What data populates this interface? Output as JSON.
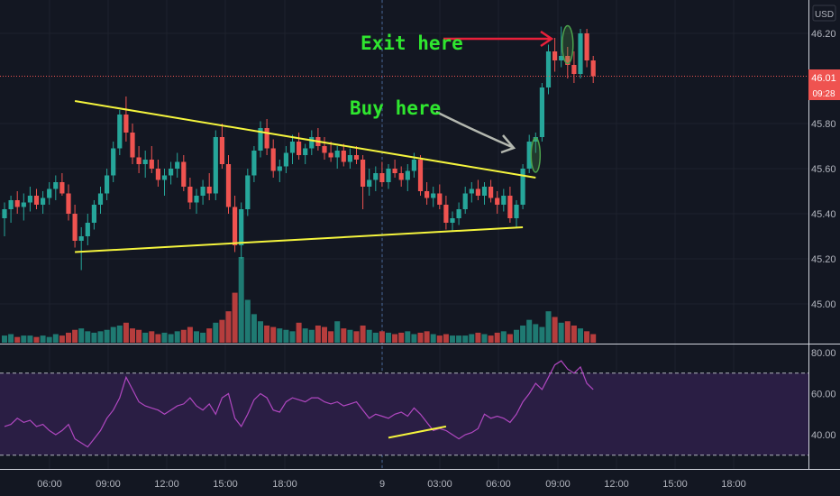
{
  "currency_label": "USD",
  "price_badge": {
    "price": "46.01",
    "countdown": "09:28"
  },
  "colors": {
    "up": "#26a69a",
    "down": "#ef5350",
    "up_vol": "#1f7a72",
    "down_vol": "#b63d3d",
    "trend": "#f5f53d",
    "annotation": "#2fe62f",
    "arrow_red": "#e8203a",
    "arrow_gray": "#b4b8b0",
    "rsi_line": "#b047c0",
    "rsi_band": "#2a1e44",
    "price_line": "#ef5350",
    "badge_bg": "#ef5350"
  },
  "annotations": [
    {
      "text": "Exit here",
      "arrow_color": "#e8203a"
    },
    {
      "text": "Buy here",
      "arrow_color": "#b4b8b0"
    }
  ],
  "chart_data": [
    {
      "type": "candlestick",
      "x_tick_labels": [
        "06:00",
        "09:00",
        "12:00",
        "15:00",
        "18:00",
        "9",
        "03:00",
        "06:00",
        "09:00",
        "12:00",
        "15:00",
        "18:00"
      ],
      "y_tick_labels": [
        "46.20",
        "45.80",
        "45.60",
        "45.40",
        "45.20",
        "45.00"
      ],
      "ylim": [
        44.91,
        46.33
      ],
      "last_price": 46.01,
      "trendlines": [
        {
          "name": "upper-trendline",
          "points": [
            [
              11,
              45.9
            ],
            [
              83,
              45.56
            ]
          ]
        },
        {
          "name": "lower-trendline",
          "points": [
            [
              11,
              45.23
            ],
            [
              81,
              45.34
            ]
          ]
        }
      ],
      "candles": [
        [
          45.38,
          45.45,
          45.3,
          45.42
        ],
        [
          45.42,
          45.48,
          45.36,
          45.46
        ],
        [
          45.46,
          45.5,
          45.4,
          45.43
        ],
        [
          45.43,
          45.49,
          45.37,
          45.45
        ],
        [
          45.45,
          45.52,
          45.41,
          45.48
        ],
        [
          45.48,
          45.51,
          45.42,
          45.44
        ],
        [
          45.44,
          45.5,
          45.4,
          45.47
        ],
        [
          45.47,
          45.54,
          45.44,
          45.51
        ],
        [
          45.51,
          45.57,
          45.46,
          45.54
        ],
        [
          45.54,
          45.58,
          45.48,
          45.49
        ],
        [
          45.49,
          45.53,
          45.37,
          45.4
        ],
        [
          45.4,
          45.44,
          45.25,
          45.28
        ],
        [
          45.28,
          45.34,
          45.15,
          45.3
        ],
        [
          45.3,
          45.4,
          45.26,
          45.36
        ],
        [
          45.36,
          45.46,
          45.33,
          45.44
        ],
        [
          45.44,
          45.52,
          45.4,
          45.49
        ],
        [
          45.49,
          45.6,
          45.46,
          45.57
        ],
        [
          45.57,
          45.72,
          45.54,
          45.69
        ],
        [
          45.69,
          45.86,
          45.66,
          45.84
        ],
        [
          45.84,
          45.92,
          45.72,
          45.76
        ],
        [
          45.76,
          45.8,
          45.62,
          45.65
        ],
        [
          45.65,
          45.7,
          45.58,
          45.62
        ],
        [
          45.62,
          45.68,
          45.56,
          45.64
        ],
        [
          45.64,
          45.7,
          45.58,
          45.6
        ],
        [
          45.6,
          45.64,
          45.52,
          45.55
        ],
        [
          45.55,
          45.6,
          45.48,
          45.57
        ],
        [
          45.57,
          45.63,
          45.53,
          45.6
        ],
        [
          45.6,
          45.67,
          45.56,
          45.63
        ],
        [
          45.63,
          45.66,
          45.5,
          45.52
        ],
        [
          45.52,
          45.56,
          45.42,
          45.45
        ],
        [
          45.45,
          45.51,
          45.4,
          45.48
        ],
        [
          45.48,
          45.55,
          45.44,
          45.52
        ],
        [
          45.52,
          45.58,
          45.46,
          45.49
        ],
        [
          45.49,
          45.77,
          45.46,
          45.74
        ],
        [
          45.74,
          45.8,
          45.6,
          45.62
        ],
        [
          45.62,
          45.66,
          45.4,
          45.43
        ],
        [
          45.43,
          45.48,
          45.23,
          45.26
        ],
        [
          45.26,
          45.45,
          45.2,
          45.42
        ],
        [
          45.42,
          45.6,
          45.39,
          45.57
        ],
        [
          45.57,
          45.7,
          45.54,
          45.68
        ],
        [
          45.68,
          45.81,
          45.65,
          45.78
        ],
        [
          45.78,
          45.82,
          45.66,
          45.69
        ],
        [
          45.69,
          45.73,
          45.56,
          45.59
        ],
        [
          45.59,
          45.64,
          45.54,
          45.61
        ],
        [
          45.61,
          45.7,
          45.58,
          45.67
        ],
        [
          45.67,
          45.75,
          45.62,
          45.72
        ],
        [
          45.72,
          45.76,
          45.64,
          45.66
        ],
        [
          45.66,
          45.71,
          45.62,
          45.69
        ],
        [
          45.69,
          45.77,
          45.66,
          45.74
        ],
        [
          45.74,
          45.78,
          45.68,
          45.7
        ],
        [
          45.7,
          45.74,
          45.64,
          45.67
        ],
        [
          45.67,
          45.72,
          45.63,
          45.65
        ],
        [
          45.65,
          45.7,
          45.6,
          45.68
        ],
        [
          45.68,
          45.71,
          45.61,
          45.63
        ],
        [
          45.63,
          45.69,
          45.6,
          45.66
        ],
        [
          45.66,
          45.7,
          45.62,
          45.64
        ],
        [
          45.64,
          45.66,
          45.42,
          45.52
        ],
        [
          45.52,
          45.6,
          45.48,
          45.55
        ],
        [
          45.55,
          45.61,
          45.5,
          45.58
        ],
        [
          45.58,
          45.63,
          45.52,
          45.54
        ],
        [
          45.54,
          45.62,
          45.51,
          45.6
        ],
        [
          45.6,
          45.64,
          45.56,
          45.58
        ],
        [
          45.58,
          45.61,
          45.52,
          45.55
        ],
        [
          45.55,
          45.62,
          45.5,
          45.59
        ],
        [
          45.59,
          45.67,
          45.56,
          45.64
        ],
        [
          45.64,
          45.66,
          45.48,
          45.5
        ],
        [
          45.5,
          45.54,
          45.44,
          45.47
        ],
        [
          45.47,
          45.52,
          45.43,
          45.49
        ],
        [
          45.49,
          45.53,
          45.42,
          45.44
        ],
        [
          45.44,
          45.48,
          45.33,
          45.36
        ],
        [
          45.36,
          45.41,
          45.32,
          45.38
        ],
        [
          45.38,
          45.45,
          45.35,
          45.42
        ],
        [
          45.42,
          45.52,
          45.4,
          45.49
        ],
        [
          45.49,
          45.54,
          45.45,
          45.51
        ],
        [
          45.51,
          45.55,
          45.46,
          45.48
        ],
        [
          45.48,
          45.54,
          45.44,
          45.52
        ],
        [
          45.52,
          45.55,
          45.45,
          45.47
        ],
        [
          45.47,
          45.5,
          45.4,
          45.44
        ],
        [
          45.44,
          45.51,
          45.41,
          45.48
        ],
        [
          45.48,
          45.52,
          45.36,
          45.38
        ],
        [
          45.38,
          45.46,
          45.34,
          45.44
        ],
        [
          45.44,
          45.62,
          45.42,
          45.6
        ],
        [
          45.6,
          45.75,
          45.58,
          45.72
        ],
        [
          45.72,
          45.76,
          45.67,
          45.74
        ],
        [
          45.74,
          45.98,
          45.72,
          45.96
        ],
        [
          45.96,
          46.15,
          45.93,
          46.12
        ],
        [
          46.12,
          46.18,
          46.03,
          46.08
        ],
        [
          46.08,
          46.23,
          46.05,
          46.1
        ],
        [
          46.1,
          46.14,
          46.0,
          46.06
        ],
        [
          46.06,
          46.12,
          45.98,
          46.02
        ],
        [
          46.02,
          46.22,
          46.0,
          46.2
        ],
        [
          46.2,
          46.22,
          46.05,
          46.08
        ],
        [
          46.08,
          46.1,
          45.98,
          46.01
        ]
      ],
      "volumes": [
        5,
        6,
        4,
        5,
        5,
        4,
        5,
        4,
        6,
        5,
        7,
        9,
        10,
        8,
        7,
        8,
        9,
        11,
        12,
        14,
        10,
        9,
        7,
        8,
        6,
        7,
        6,
        8,
        9,
        11,
        8,
        7,
        10,
        14,
        16,
        22,
        35,
        60,
        30,
        20,
        15,
        12,
        11,
        10,
        9,
        8,
        14,
        10,
        9,
        12,
        11,
        8,
        15,
        10,
        9,
        8,
        12,
        9,
        7,
        8,
        7,
        6,
        7,
        8,
        6,
        7,
        8,
        6,
        5,
        6,
        5,
        5,
        5,
        6,
        7,
        6,
        5,
        7,
        8,
        6,
        9,
        12,
        16,
        13,
        11,
        22,
        18,
        14,
        15,
        12,
        10,
        8,
        6
      ],
      "ohlc_order": [
        "open",
        "high",
        "low",
        "close"
      ]
    },
    {
      "type": "line",
      "indicator": "RSI",
      "y_tick_labels": [
        "80.00",
        "60.00",
        "40.00"
      ],
      "ylim": [
        28,
        82
      ],
      "bands": [
        70,
        30
      ],
      "values": [
        44,
        45,
        48,
        46,
        47,
        44,
        45,
        42,
        40,
        42,
        45,
        38,
        36,
        34,
        38,
        42,
        48,
        52,
        58,
        68,
        62,
        56,
        54,
        53,
        52,
        50,
        52,
        54,
        55,
        58,
        54,
        52,
        55,
        50,
        58,
        60,
        48,
        44,
        50,
        57,
        60,
        58,
        52,
        51,
        56,
        58,
        57,
        56,
        58,
        58,
        56,
        55,
        56,
        54,
        55,
        56,
        52,
        48,
        50,
        49,
        48,
        50,
        51,
        49,
        53,
        50,
        46,
        42,
        43,
        42,
        40,
        38,
        40,
        41,
        43,
        50,
        48,
        49,
        48,
        46,
        50,
        56,
        60,
        65,
        62,
        68,
        74,
        76,
        72,
        70,
        73,
        65,
        62
      ],
      "trendlines": [
        {
          "name": "rsi-trendline",
          "points": [
            [
              60,
              38.5
            ],
            [
              69,
              44
            ]
          ]
        }
      ]
    }
  ]
}
